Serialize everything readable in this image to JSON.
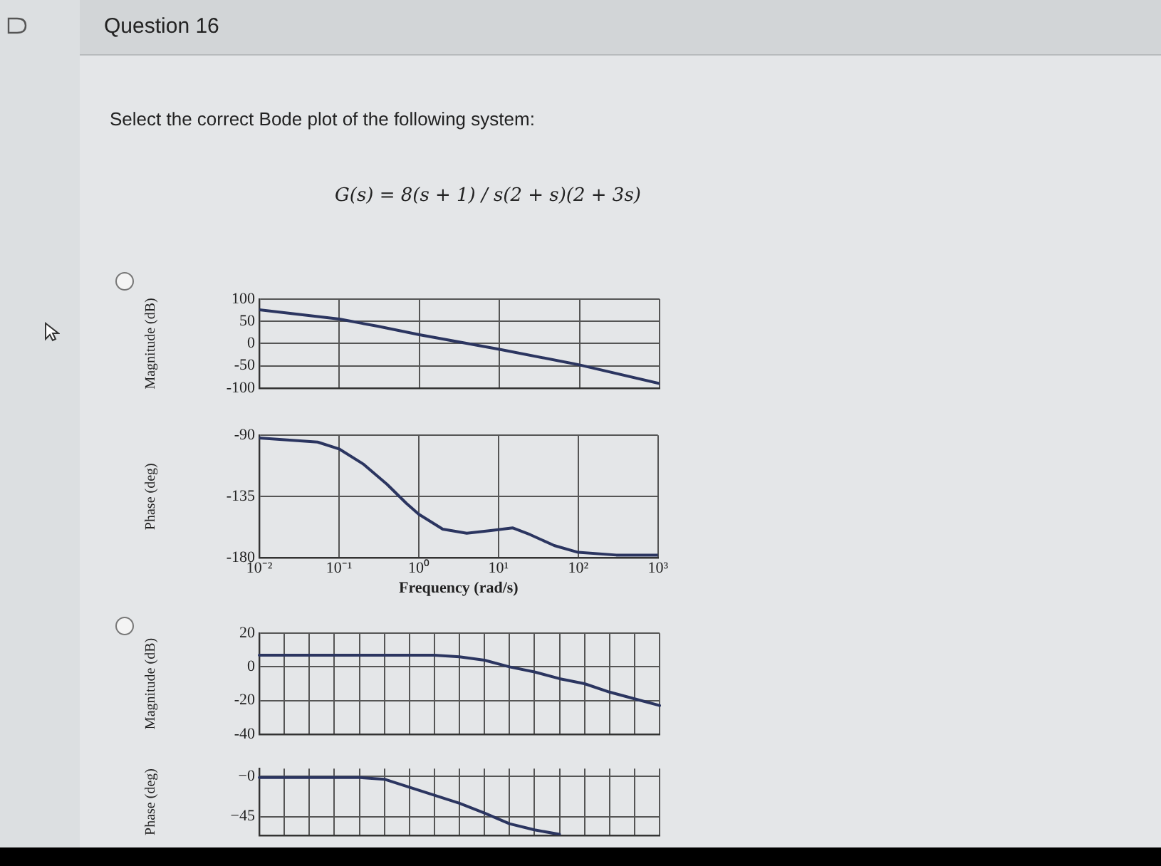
{
  "chart_data": [
    {
      "type": "line",
      "title": "Question 16",
      "subtitle": "Select the correct Bode plot of the following system:",
      "annotations": [
        "G(s) = 8(s + 1) / s(2 + s)(2 + 3s)"
      ],
      "ylabel": "Magnitude (dB)",
      "log": "x",
      "x": [
        0.01,
        0.1,
        0.3,
        1,
        10,
        100,
        1000
      ],
      "series": [
        {
          "color": "#2b3560",
          "values": [
            76,
            55,
            39,
            20,
            -13,
            -48,
            -90
          ]
        }
      ],
      "xlim": [
        0.01,
        1000
      ],
      "xticks": [
        {
          "value": 0.01,
          "label": null
        },
        {
          "value": 0.1,
          "label": null
        },
        {
          "value": 1,
          "label": null
        },
        {
          "value": 10,
          "label": null
        },
        {
          "value": 100,
          "label": null
        },
        {
          "value": 1000,
          "label": null
        }
      ],
      "ylim": [
        -100,
        100
      ],
      "yticks": [
        100,
        50,
        0,
        -50,
        -100
      ],
      "grid": true,
      "tick_labels": "y"
    },
    {
      "type": "line",
      "xlabel": "Frequency (rad/s)",
      "ylabel": "Phase (deg)",
      "log": "x",
      "x": [
        0.01,
        0.054,
        0.1,
        0.2,
        0.4,
        0.7,
        1,
        2,
        4,
        8,
        15,
        25,
        50,
        100,
        300,
        1000
      ],
      "series": [
        {
          "color": "#2b3560",
          "values": [
            -92,
            -95,
            -100,
            -111,
            -126,
            -140,
            -148,
            -159,
            -162,
            -160,
            -158,
            -163,
            -171,
            -176,
            -178,
            -178
          ]
        }
      ],
      "xlim": [
        0.01,
        1000
      ],
      "xticks": [
        {
          "value": 0.01,
          "label": "10⁻²"
        },
        {
          "value": 0.1,
          "label": "10⁻¹"
        },
        {
          "value": 1,
          "label": "10⁰"
        },
        {
          "value": 10,
          "label": "10¹"
        },
        {
          "value": 100,
          "label": "10²"
        },
        {
          "value": 1000,
          "label": "10³"
        }
      ],
      "ylim": [
        -180,
        -90
      ],
      "yticks": [
        -90,
        -135,
        -180
      ],
      "grid": true
    },
    {
      "type": "line",
      "ylabel": "Magnitude (dB)",
      "categories": [
        null,
        null,
        null,
        null,
        null,
        null,
        null,
        null,
        null,
        null,
        null,
        null,
        null,
        null,
        null,
        null,
        null
      ],
      "series": [
        {
          "color": "#2b3560",
          "values": [
            7,
            7,
            7,
            7,
            7,
            7,
            7,
            7,
            6,
            4,
            0,
            -3,
            -7,
            -10,
            -15,
            -19,
            -23
          ]
        }
      ],
      "ylim": [
        -40,
        20
      ],
      "yticks": [
        20,
        0,
        -20,
        -40
      ],
      "grid": true,
      "tick_labels": "y"
    },
    {
      "type": "line",
      "ylabel": "Phase (deg)",
      "categories": [
        null,
        null,
        null,
        null,
        null,
        null,
        null,
        null,
        null,
        null,
        null,
        null,
        null,
        null,
        null,
        null,
        null
      ],
      "series": [
        {
          "color": "#2b3560",
          "values": [
            -1,
            -1,
            -1,
            -1,
            -1,
            -3,
            -12,
            -21,
            -30,
            -41,
            -53,
            -60,
            -65,
            null,
            null,
            null,
            null
          ]
        }
      ],
      "ylim": [
        -66,
        9
      ],
      "yticks": [
        {
          "value": 0,
          "label": "−0"
        },
        {
          "value": -45,
          "label": "−45"
        }
      ],
      "grid": true,
      "tick_labels": "y"
    }
  ]
}
